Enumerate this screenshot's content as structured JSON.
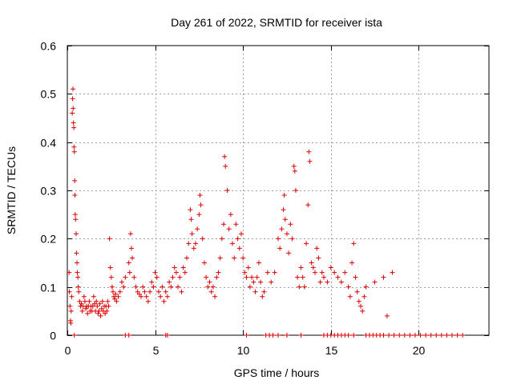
{
  "chart_data": {
    "type": "scatter",
    "title": "Day 261 of 2022, SRMTID for receiver ista",
    "xlabel": "GPS time / hours",
    "ylabel": "SRMTID / TECUs",
    "xlim": [
      0,
      24
    ],
    "ylim": [
      0,
      0.6
    ],
    "x_ticks": [
      0,
      5,
      10,
      15,
      20
    ],
    "x_tick_labels": [
      "0",
      "5",
      "10",
      "15",
      "20"
    ],
    "y_ticks": [
      0,
      0.1,
      0.2,
      0.3,
      0.4,
      0.5,
      0.6
    ],
    "y_tick_labels": [
      "0",
      "0.1",
      "0.2",
      "0.3",
      "0.4",
      "0.5",
      "0.6"
    ],
    "grid": true,
    "marker": "plus",
    "color": "#dd0000",
    "series": [
      {
        "name": "SRMTID",
        "points": [
          [
            0.1,
            0.13
          ],
          [
            0.12,
            0.09
          ],
          [
            0.15,
            0.06
          ],
          [
            0.18,
            0.03
          ],
          [
            0.2,
            0.025
          ],
          [
            0.22,
            0.05
          ],
          [
            0.25,
            0.08
          ],
          [
            0.28,
            0.46
          ],
          [
            0.3,
            0.49
          ],
          [
            0.32,
            0.51
          ],
          [
            0.33,
            0.47
          ],
          [
            0.35,
            0.44
          ],
          [
            0.37,
            0.43
          ],
          [
            0.38,
            0.39
          ],
          [
            0.4,
            0.38
          ],
          [
            0.42,
            0.32
          ],
          [
            0.43,
            0.29
          ],
          [
            0.45,
            0.25
          ],
          [
            0.47,
            0.24
          ],
          [
            0.5,
            0.21
          ],
          [
            0.52,
            0.17
          ],
          [
            0.55,
            0.15
          ],
          [
            0.57,
            0.13
          ],
          [
            0.6,
            0.12
          ],
          [
            0.62,
            0.1
          ],
          [
            0.65,
            0.09
          ],
          [
            0.7,
            0.07
          ],
          [
            0.75,
            0.06
          ],
          [
            0.8,
            0.065
          ],
          [
            0.85,
            0.05
          ],
          [
            0.9,
            0.06
          ],
          [
            0.95,
            0.08
          ],
          [
            1.0,
            0.07
          ],
          [
            1.05,
            0.055
          ],
          [
            1.1,
            0.06
          ],
          [
            1.15,
            0.045
          ],
          [
            1.2,
            0.06
          ],
          [
            1.25,
            0.07
          ],
          [
            1.3,
            0.05
          ],
          [
            1.35,
            0.06
          ],
          [
            1.4,
            0.05
          ],
          [
            1.45,
            0.06
          ],
          [
            1.5,
            0.08
          ],
          [
            1.55,
            0.065
          ],
          [
            1.6,
            0.05
          ],
          [
            1.65,
            0.07
          ],
          [
            1.7,
            0.06
          ],
          [
            1.75,
            0.045
          ],
          [
            1.8,
            0.05
          ],
          [
            1.85,
            0.065
          ],
          [
            1.9,
            0.04
          ],
          [
            1.95,
            0.055
          ],
          [
            2.0,
            0.07
          ],
          [
            2.05,
            0.05
          ],
          [
            2.1,
            0.06
          ],
          [
            2.15,
            0.045
          ],
          [
            2.2,
            0.06
          ],
          [
            2.25,
            0.05
          ],
          [
            2.3,
            0.07
          ],
          [
            2.35,
            0.06
          ],
          [
            2.4,
            0.2
          ],
          [
            2.45,
            0.14
          ],
          [
            2.5,
            0.12
          ],
          [
            2.55,
            0.1
          ],
          [
            2.6,
            0.09
          ],
          [
            2.65,
            0.08
          ],
          [
            2.7,
            0.075
          ],
          [
            2.75,
            0.085
          ],
          [
            2.8,
            0.07
          ],
          [
            2.9,
            0.08
          ],
          [
            3.0,
            0.09
          ],
          [
            3.1,
            0.11
          ],
          [
            3.2,
            0.1
          ],
          [
            3.3,
            0.12
          ],
          [
            3.5,
            0.15
          ],
          [
            3.55,
            0.13
          ],
          [
            3.6,
            0.21
          ],
          [
            3.65,
            0.18
          ],
          [
            3.7,
            0.16
          ],
          [
            3.8,
            0.12
          ],
          [
            3.9,
            0.1
          ],
          [
            4.0,
            0.09
          ],
          [
            4.1,
            0.085
          ],
          [
            4.2,
            0.08
          ],
          [
            4.3,
            0.1
          ],
          [
            4.4,
            0.09
          ],
          [
            4.5,
            0.08
          ],
          [
            4.6,
            0.07
          ],
          [
            4.7,
            0.09
          ],
          [
            4.8,
            0.11
          ],
          [
            4.9,
            0.1
          ],
          [
            5.0,
            0.13
          ],
          [
            5.1,
            0.12
          ],
          [
            5.2,
            0.09
          ],
          [
            5.3,
            0.08
          ],
          [
            5.4,
            0.1
          ],
          [
            5.5,
            0.07
          ],
          [
            5.6,
            0.09
          ],
          [
            5.7,
            0.08
          ],
          [
            5.8,
            0.11
          ],
          [
            5.9,
            0.1
          ],
          [
            6.0,
            0.12
          ],
          [
            6.1,
            0.14
          ],
          [
            6.2,
            0.13
          ],
          [
            6.3,
            0.1
          ],
          [
            6.4,
            0.12
          ],
          [
            6.5,
            0.09
          ],
          [
            6.6,
            0.14
          ],
          [
            6.7,
            0.13
          ],
          [
            6.8,
            0.16
          ],
          [
            6.9,
            0.19
          ],
          [
            7.0,
            0.26
          ],
          [
            7.05,
            0.24
          ],
          [
            7.1,
            0.21
          ],
          [
            7.2,
            0.18
          ],
          [
            7.3,
            0.19
          ],
          [
            7.4,
            0.22
          ],
          [
            7.5,
            0.25
          ],
          [
            7.55,
            0.29
          ],
          [
            7.6,
            0.27
          ],
          [
            7.7,
            0.2
          ],
          [
            7.8,
            0.15
          ],
          [
            7.9,
            0.12
          ],
          [
            8.0,
            0.1
          ],
          [
            8.1,
            0.11
          ],
          [
            8.2,
            0.09
          ],
          [
            8.3,
            0.1
          ],
          [
            8.4,
            0.08
          ],
          [
            8.5,
            0.12
          ],
          [
            8.6,
            0.13
          ],
          [
            8.7,
            0.16
          ],
          [
            8.8,
            0.2
          ],
          [
            8.9,
            0.23
          ],
          [
            8.95,
            0.37
          ],
          [
            9.0,
            0.35
          ],
          [
            9.1,
            0.3
          ],
          [
            9.2,
            0.22
          ],
          [
            9.3,
            0.25
          ],
          [
            9.4,
            0.19
          ],
          [
            9.5,
            0.16
          ],
          [
            9.6,
            0.23
          ],
          [
            9.7,
            0.2
          ],
          [
            9.8,
            0.18
          ],
          [
            9.9,
            0.21
          ],
          [
            10.0,
            0.16
          ],
          [
            10.1,
            0.13
          ],
          [
            10.2,
            0.12
          ],
          [
            10.3,
            0.14
          ],
          [
            10.4,
            0.1
          ],
          [
            10.5,
            0.12
          ],
          [
            10.6,
            0.11
          ],
          [
            10.7,
            0.09
          ],
          [
            10.8,
            0.12
          ],
          [
            10.9,
            0.15
          ],
          [
            11.0,
            0.11
          ],
          [
            11.1,
            0.08
          ],
          [
            11.2,
            0.09
          ],
          [
            11.4,
            0.13
          ],
          [
            11.6,
            0.11
          ],
          [
            11.8,
            0.13
          ],
          [
            12.0,
            0.2
          ],
          [
            12.1,
            0.18
          ],
          [
            12.2,
            0.22
          ],
          [
            12.3,
            0.26
          ],
          [
            12.35,
            0.29
          ],
          [
            12.4,
            0.24
          ],
          [
            12.5,
            0.21
          ],
          [
            12.6,
            0.17
          ],
          [
            12.7,
            0.23
          ],
          [
            12.8,
            0.2
          ],
          [
            12.9,
            0.35
          ],
          [
            12.95,
            0.34
          ],
          [
            13.0,
            0.3
          ],
          [
            13.1,
            0.12
          ],
          [
            13.2,
            0.1
          ],
          [
            13.3,
            0.14
          ],
          [
            13.4,
            0.12
          ],
          [
            13.5,
            0.1
          ],
          [
            13.6,
            0.19
          ],
          [
            13.7,
            0.27
          ],
          [
            13.75,
            0.38
          ],
          [
            13.8,
            0.36
          ],
          [
            13.9,
            0.15
          ],
          [
            14.0,
            0.14
          ],
          [
            14.1,
            0.13
          ],
          [
            14.2,
            0.18
          ],
          [
            14.3,
            0.16
          ],
          [
            14.4,
            0.11
          ],
          [
            14.5,
            0.13
          ],
          [
            14.6,
            0.12
          ],
          [
            14.8,
            0.11
          ],
          [
            15.0,
            0.14
          ],
          [
            15.2,
            0.13
          ],
          [
            15.4,
            0.12
          ],
          [
            15.6,
            0.11
          ],
          [
            15.8,
            0.13
          ],
          [
            16.0,
            0.1
          ],
          [
            16.1,
            0.08
          ],
          [
            16.2,
            0.15
          ],
          [
            16.3,
            0.19
          ],
          [
            16.4,
            0.12
          ],
          [
            16.5,
            0.09
          ],
          [
            16.6,
            0.07
          ],
          [
            16.7,
            0.06
          ],
          [
            16.8,
            0.05
          ],
          [
            16.9,
            0.08
          ],
          [
            17.0,
            0.1
          ],
          [
            17.5,
            0.11
          ],
          [
            18.0,
            0.12
          ],
          [
            18.2,
            0.04
          ],
          [
            18.5,
            0.13
          ],
          [
            0.4,
            0.0
          ],
          [
            3.3,
            0.0
          ],
          [
            3.5,
            0.0
          ],
          [
            5.6,
            0.0
          ],
          [
            5.7,
            0.0
          ],
          [
            10.2,
            0.0
          ],
          [
            11.3,
            0.0
          ],
          [
            11.5,
            0.0
          ],
          [
            11.7,
            0.0
          ],
          [
            12.0,
            0.0
          ],
          [
            12.5,
            0.0
          ],
          [
            13.3,
            0.0
          ],
          [
            14.6,
            0.0
          ],
          [
            14.8,
            0.0
          ],
          [
            15.0,
            0.0
          ],
          [
            15.2,
            0.0
          ],
          [
            15.4,
            0.0
          ],
          [
            15.6,
            0.0
          ],
          [
            15.8,
            0.0
          ],
          [
            16.0,
            0.0
          ],
          [
            16.3,
            0.0
          ],
          [
            17.0,
            0.0
          ],
          [
            17.2,
            0.0
          ],
          [
            17.4,
            0.0
          ],
          [
            17.6,
            0.0
          ],
          [
            17.8,
            0.0
          ],
          [
            18.0,
            0.0
          ],
          [
            18.3,
            0.0
          ],
          [
            18.6,
            0.0
          ],
          [
            18.9,
            0.0
          ],
          [
            19.2,
            0.0
          ],
          [
            19.5,
            0.0
          ],
          [
            19.8,
            0.0
          ],
          [
            20.1,
            0.0
          ],
          [
            20.4,
            0.0
          ],
          [
            20.7,
            0.0
          ],
          [
            21.0,
            0.0
          ],
          [
            21.3,
            0.0
          ],
          [
            21.6,
            0.0
          ],
          [
            21.9,
            0.0
          ],
          [
            22.2,
            0.0
          ],
          [
            22.5,
            0.0
          ]
        ]
      }
    ]
  }
}
